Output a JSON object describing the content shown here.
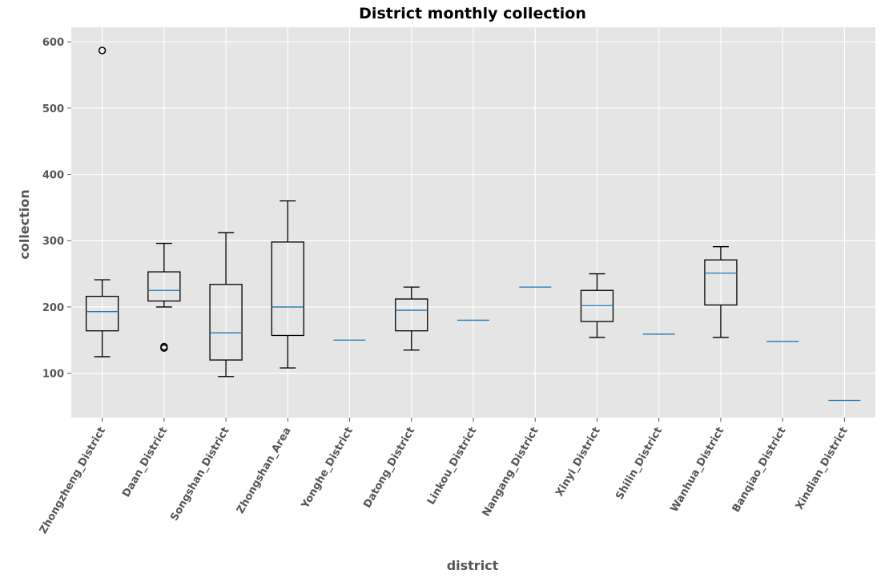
{
  "chart_data": {
    "type": "box",
    "title": "District monthly collection",
    "xlabel": "district",
    "ylabel": "collection",
    "ylim": [
      33,
      622
    ],
    "yticks": [
      100,
      200,
      300,
      400,
      500,
      600
    ],
    "grid": true,
    "categories": [
      "Zhongzheng_District",
      "Daan_District",
      "Songshan_District",
      "Zhongshan_Area",
      "Yonghe_District",
      "Datong_District",
      "Linkou_District",
      "Nangang_District",
      "Xinyi_District",
      "Shilin_District",
      "Wanhua_District",
      "Banqiao_District",
      "Xindian_District"
    ],
    "boxes": [
      {
        "whisker_low": 125,
        "q1": 164,
        "median": 193,
        "q3": 216,
        "whisker_high": 241,
        "outliers": [
          587
        ]
      },
      {
        "whisker_low": 200,
        "q1": 209,
        "median": 225,
        "q3": 253,
        "whisker_high": 296,
        "outliers": [
          138,
          140
        ]
      },
      {
        "whisker_low": 95,
        "q1": 120,
        "median": 161,
        "q3": 234,
        "whisker_high": 312,
        "outliers": []
      },
      {
        "whisker_low": 108,
        "q1": 157,
        "median": 200,
        "q3": 298,
        "whisker_high": 360,
        "outliers": []
      },
      {
        "whisker_low": 150,
        "q1": 150,
        "median": 150,
        "q3": 150,
        "whisker_high": 150,
        "outliers": []
      },
      {
        "whisker_low": 135,
        "q1": 164,
        "median": 195,
        "q3": 212,
        "whisker_high": 230,
        "outliers": []
      },
      {
        "whisker_low": 180,
        "q1": 180,
        "median": 180,
        "q3": 180,
        "whisker_high": 180,
        "outliers": []
      },
      {
        "whisker_low": 230,
        "q1": 230,
        "median": 230,
        "q3": 230,
        "whisker_high": 230,
        "outliers": []
      },
      {
        "whisker_low": 154,
        "q1": 178,
        "median": 202,
        "q3": 225,
        "whisker_high": 250,
        "outliers": []
      },
      {
        "whisker_low": 159,
        "q1": 159,
        "median": 159,
        "q3": 159,
        "whisker_high": 159,
        "outliers": []
      },
      {
        "whisker_low": 154,
        "q1": 203,
        "median": 251,
        "q3": 271,
        "whisker_high": 291,
        "outliers": []
      },
      {
        "whisker_low": 148,
        "q1": 148,
        "median": 148,
        "q3": 148,
        "whisker_high": 148,
        "outliers": []
      },
      {
        "whisker_low": 59,
        "q1": 59,
        "median": 59,
        "q3": 59,
        "whisker_high": 59,
        "outliers": []
      }
    ],
    "colors": {
      "plot_background": "#e5e5e5",
      "grid": "#ffffff",
      "box_line": "#000000",
      "median_line": "#1f77b4",
      "tick_text": "#555555"
    }
  }
}
